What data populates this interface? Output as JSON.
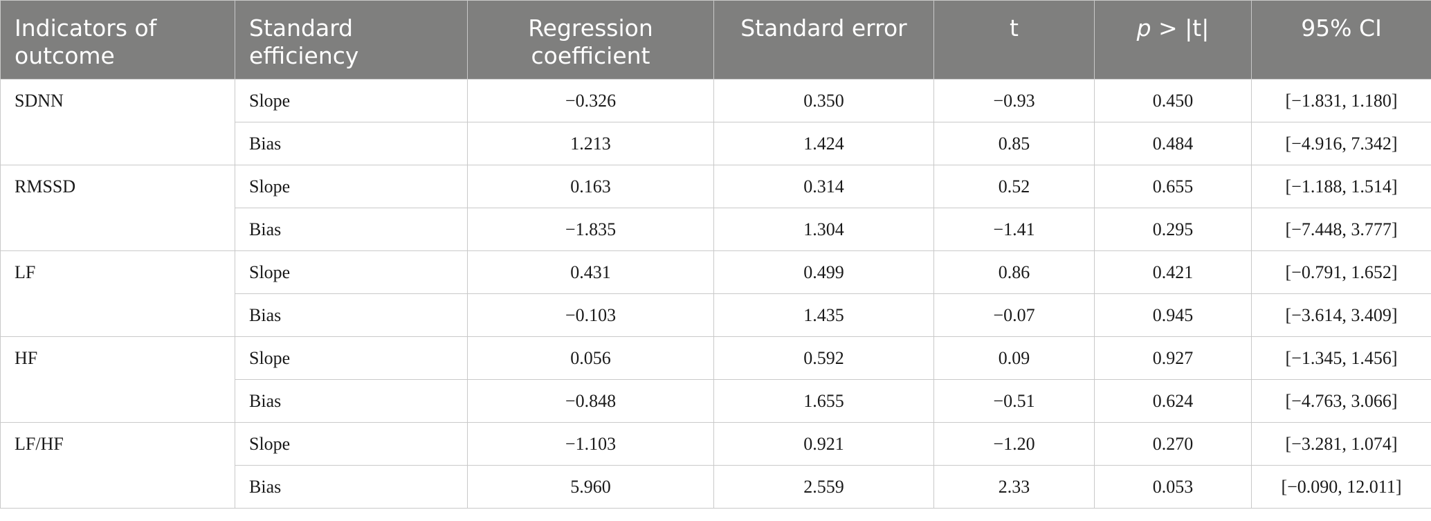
{
  "headers": {
    "indicator": "Indicators of outcome",
    "efficiency": "Standard efficiency",
    "coefficient": "Regression coefficient",
    "std_error": "Standard error",
    "t": "t",
    "p_italic": "p",
    "p_rest": " > |t|",
    "ci": "95% CI"
  },
  "groups": [
    {
      "indicator": "SDNN",
      "rows": [
        {
          "efficiency": "Slope",
          "coefficient": "−0.326",
          "std_error": "0.350",
          "t": "−0.93",
          "p": "0.450",
          "ci": "[−1.831, 1.180]"
        },
        {
          "efficiency": "Bias",
          "coefficient": "1.213",
          "std_error": "1.424",
          "t": "0.85",
          "p": "0.484",
          "ci": "[−4.916, 7.342]"
        }
      ]
    },
    {
      "indicator": "RMSSD",
      "rows": [
        {
          "efficiency": "Slope",
          "coefficient": "0.163",
          "std_error": "0.314",
          "t": "0.52",
          "p": "0.655",
          "ci": "[−1.188, 1.514]"
        },
        {
          "efficiency": "Bias",
          "coefficient": "−1.835",
          "std_error": "1.304",
          "t": "−1.41",
          "p": "0.295",
          "ci": "[−7.448, 3.777]"
        }
      ]
    },
    {
      "indicator": "LF",
      "rows": [
        {
          "efficiency": "Slope",
          "coefficient": "0.431",
          "std_error": "0.499",
          "t": "0.86",
          "p": "0.421",
          "ci": "[−0.791, 1.652]"
        },
        {
          "efficiency": "Bias",
          "coefficient": "−0.103",
          "std_error": "1.435",
          "t": "−0.07",
          "p": "0.945",
          "ci": "[−3.614, 3.409]"
        }
      ]
    },
    {
      "indicator": "HF",
      "rows": [
        {
          "efficiency": "Slope",
          "coefficient": "0.056",
          "std_error": "0.592",
          "t": "0.09",
          "p": "0.927",
          "ci": "[−1.345, 1.456]"
        },
        {
          "efficiency": "Bias",
          "coefficient": "−0.848",
          "std_error": "1.655",
          "t": "−0.51",
          "p": "0.624",
          "ci": "[−4.763, 3.066]"
        }
      ]
    },
    {
      "indicator": "LF/HF",
      "rows": [
        {
          "efficiency": "Slope",
          "coefficient": "−1.103",
          "std_error": "0.921",
          "t": "−1.20",
          "p": "0.270",
          "ci": "[−3.281, 1.074]"
        },
        {
          "efficiency": "Bias",
          "coefficient": "5.960",
          "std_error": "2.559",
          "t": "2.33",
          "p": "0.053",
          "ci": "[−0.090, 12.011]"
        }
      ]
    }
  ],
  "colors": {
    "header_bg": "#7f7f7e",
    "header_text": "#ffffff",
    "grid": "#c9c9c9",
    "body_text": "#1a1a1a"
  }
}
